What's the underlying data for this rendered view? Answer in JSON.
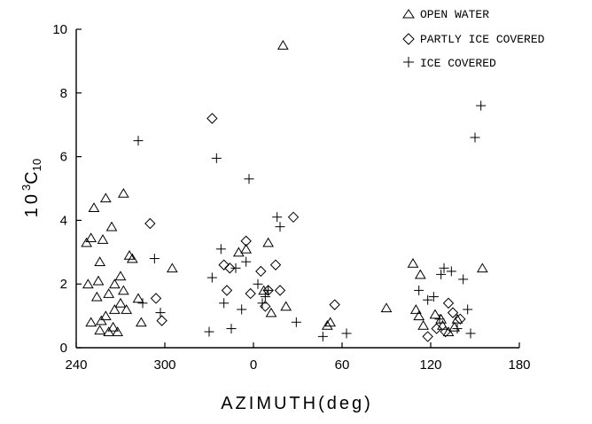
{
  "chart_data": {
    "type": "scatter",
    "title": "",
    "xlabel": "AZIMUTH(deg)",
    "ylabel_parts": {
      "base": "10",
      "exp": "3",
      "sym": "C",
      "sub": "10"
    },
    "x_tick_labels": [
      "240",
      "300",
      "0",
      "60",
      "120",
      "180"
    ],
    "y_ticks": [
      0,
      2,
      4,
      6,
      8,
      10
    ],
    "xlim": [
      -120,
      180
    ],
    "ylim": [
      0,
      10
    ],
    "x_axis_note": "azimuth axis runs 240 to 360 (shown as 0) then 0 to 180; x values below are degrees relative to 0 (negative = 240–360)",
    "legend_position": "top-right",
    "series": [
      {
        "name": "OPEN WATER",
        "marker": "triangle",
        "points": [
          [
            -113,
            3.3
          ],
          [
            -110,
            3.45
          ],
          [
            -108,
            4.4
          ],
          [
            -100,
            4.7
          ],
          [
            -102,
            3.4
          ],
          [
            -96,
            3.8
          ],
          [
            -88,
            4.85
          ],
          [
            -112,
            2.0
          ],
          [
            -104,
            2.7
          ],
          [
            -105,
            2.1
          ],
          [
            -98,
            1.7
          ],
          [
            -94,
            2.0
          ],
          [
            -90,
            2.25
          ],
          [
            -88,
            1.8
          ],
          [
            -84,
            2.9
          ],
          [
            -82,
            2.8
          ],
          [
            -78,
            1.55
          ],
          [
            -86,
            1.2
          ],
          [
            -90,
            1.4
          ],
          [
            -94,
            1.2
          ],
          [
            -106,
            1.6
          ],
          [
            -100,
            1.0
          ],
          [
            -103,
            0.85
          ],
          [
            -110,
            0.8
          ],
          [
            -104,
            0.55
          ],
          [
            -98,
            0.5
          ],
          [
            -95,
            0.65
          ],
          [
            -92,
            0.5
          ],
          [
            -76,
            0.8
          ],
          [
            -55,
            2.5
          ],
          [
            -10,
            3.0
          ],
          [
            -5,
            3.1
          ],
          [
            10,
            3.3
          ],
          [
            12,
            1.1
          ],
          [
            7,
            1.8
          ],
          [
            20,
            9.5
          ],
          [
            22,
            1.3
          ],
          [
            50,
            0.7
          ],
          [
            52,
            0.8
          ],
          [
            90,
            1.25
          ],
          [
            108,
            2.65
          ],
          [
            113,
            2.3
          ],
          [
            110,
            1.2
          ],
          [
            112,
            1.0
          ],
          [
            115,
            0.7
          ],
          [
            123,
            1.05
          ],
          [
            127,
            0.9
          ],
          [
            128,
            0.7
          ],
          [
            132,
            0.5
          ],
          [
            136,
            0.65
          ],
          [
            138,
            0.9
          ],
          [
            155,
            2.5
          ]
        ]
      },
      {
        "name": "PARTLY ICE COVERED",
        "marker": "diamond",
        "points": [
          [
            -70,
            3.9
          ],
          [
            -66,
            1.55
          ],
          [
            -62,
            0.85
          ],
          [
            -28,
            7.2
          ],
          [
            -20,
            2.6
          ],
          [
            -16,
            2.5
          ],
          [
            -18,
            1.8
          ],
          [
            -5,
            3.35
          ],
          [
            -2,
            1.7
          ],
          [
            5,
            2.4
          ],
          [
            8,
            1.3
          ],
          [
            10,
            1.8
          ],
          [
            15,
            2.6
          ],
          [
            18,
            1.8
          ],
          [
            27,
            4.1
          ],
          [
            55,
            1.35
          ],
          [
            118,
            0.35
          ],
          [
            124,
            0.6
          ],
          [
            130,
            0.5
          ],
          [
            132,
            1.4
          ],
          [
            135,
            1.1
          ],
          [
            140,
            0.9
          ]
        ]
      },
      {
        "name": "ICE COVERED",
        "marker": "plus",
        "points": [
          [
            -78,
            6.5
          ],
          [
            -75,
            1.4
          ],
          [
            -67,
            2.8
          ],
          [
            -63,
            1.1
          ],
          [
            -30,
            0.5
          ],
          [
            -25,
            5.95
          ],
          [
            -22,
            3.1
          ],
          [
            -20,
            1.4
          ],
          [
            -28,
            2.2
          ],
          [
            -15,
            0.6
          ],
          [
            -12,
            2.5
          ],
          [
            -8,
            1.2
          ],
          [
            -5,
            2.7
          ],
          [
            -3,
            5.3
          ],
          [
            3,
            2.0
          ],
          [
            6,
            1.4
          ],
          [
            8,
            1.6
          ],
          [
            10,
            1.8
          ],
          [
            16,
            4.1
          ],
          [
            18,
            3.8
          ],
          [
            29,
            0.8
          ],
          [
            47,
            0.35
          ],
          [
            63,
            0.45
          ],
          [
            112,
            1.8
          ],
          [
            118,
            1.5
          ],
          [
            122,
            1.6
          ],
          [
            127,
            2.3
          ],
          [
            129,
            2.5
          ],
          [
            134,
            2.4
          ],
          [
            126,
            0.9
          ],
          [
            138,
            0.6
          ],
          [
            142,
            2.15
          ],
          [
            145,
            1.2
          ],
          [
            147,
            0.45
          ],
          [
            150,
            6.6
          ],
          [
            154,
            7.6
          ]
        ]
      }
    ]
  }
}
